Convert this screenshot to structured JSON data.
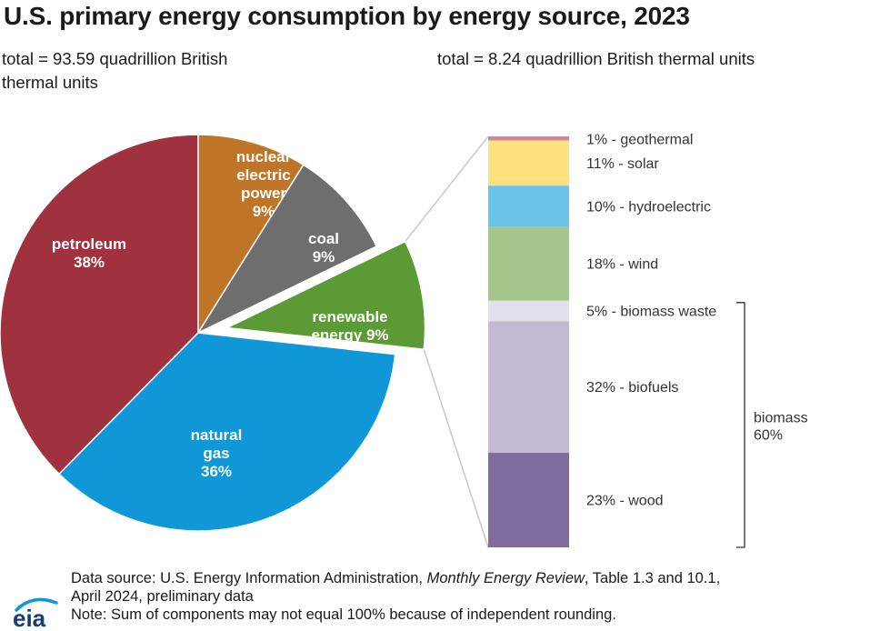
{
  "title": "U.S. primary energy consumption by energy source, 2023",
  "subtitle_left": "total = 93.59 quadrillion British thermal units",
  "subtitle_right": "total = 8.24 quadrillion British thermal units",
  "footer": {
    "line1_prefix": "Data source: U.S. Energy Information Administration, ",
    "line1_italic": "Monthly Energy Review",
    "line1_suffix": ", Table 1.3 and 10.1,",
    "line2": "April 2024, preliminary data",
    "line3": "Note: Sum of components may not equal 100% because of independent rounding."
  },
  "logo_text": "eia",
  "colors": {
    "petroleum": "#a0313e",
    "nuclear": "#bf7428",
    "coal": "#6e6e6e",
    "renewable": "#5b9a35",
    "natural_gas": "#0f97d8",
    "geothermal": "#c98a94",
    "solar": "#fde17e",
    "hydroelectric": "#6cc3e9",
    "wind": "#a5c68c",
    "biomass_waste": "#e3e0ee",
    "biofuels": "#c2b9d3",
    "wood": "#7d6c9d"
  },
  "chart_data": [
    {
      "type": "pie",
      "slices": [
        {
          "key": "petroleum",
          "label_lines": [
            "petroleum",
            "38%"
          ],
          "value": 38
        },
        {
          "key": "nuclear",
          "label_lines": [
            "nuclear",
            "electric",
            "power",
            "9%"
          ],
          "value": 9
        },
        {
          "key": "coal",
          "label_lines": [
            "coal",
            "9%"
          ],
          "value": 9
        },
        {
          "key": "renewable",
          "label_lines": [
            "renewable",
            "energy 9%"
          ],
          "value": 9,
          "exploded": true
        },
        {
          "key": "natural_gas",
          "label_lines": [
            "natural",
            "gas",
            "36%"
          ],
          "value": 36
        }
      ]
    },
    {
      "type": "bar",
      "stacked": true,
      "segments": [
        {
          "key": "geothermal",
          "label": "1% - geothermal",
          "value": 1
        },
        {
          "key": "solar",
          "label": "11% - solar",
          "value": 11
        },
        {
          "key": "hydroelectric",
          "label": "10% - hydroelectric",
          "value": 10
        },
        {
          "key": "wind",
          "label": "18% - wind",
          "value": 18
        },
        {
          "key": "biomass_waste",
          "label": "5% - biomass waste",
          "value": 5
        },
        {
          "key": "biofuels",
          "label": "32% - biofuels",
          "value": 32
        },
        {
          "key": "wood",
          "label": "23% - wood",
          "value": 23
        }
      ],
      "group_bracket": {
        "label_lines": [
          "biomass",
          "60%"
        ],
        "from": "biomass_waste",
        "to": "wood"
      }
    }
  ]
}
